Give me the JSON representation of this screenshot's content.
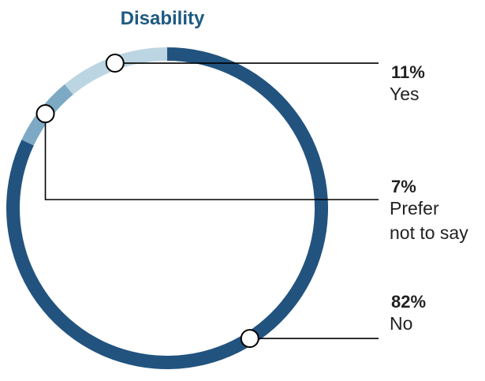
{
  "chart_data": {
    "type": "pie",
    "variant": "donut",
    "title": "Disability",
    "title_color": "#1e5a82",
    "slices": [
      {
        "label": "No",
        "percent_label": "82%",
        "value": 82,
        "color": "#22537f"
      },
      {
        "label": "Prefer not to say",
        "label_lines": [
          "Prefer",
          "not to say"
        ],
        "percent_label": "7%",
        "value": 7,
        "color": "#7da9c5"
      },
      {
        "label": "Yes",
        "percent_label": "11%",
        "value": 11,
        "color": "#bcd5e2"
      }
    ],
    "legend": "callout labels on the right"
  }
}
